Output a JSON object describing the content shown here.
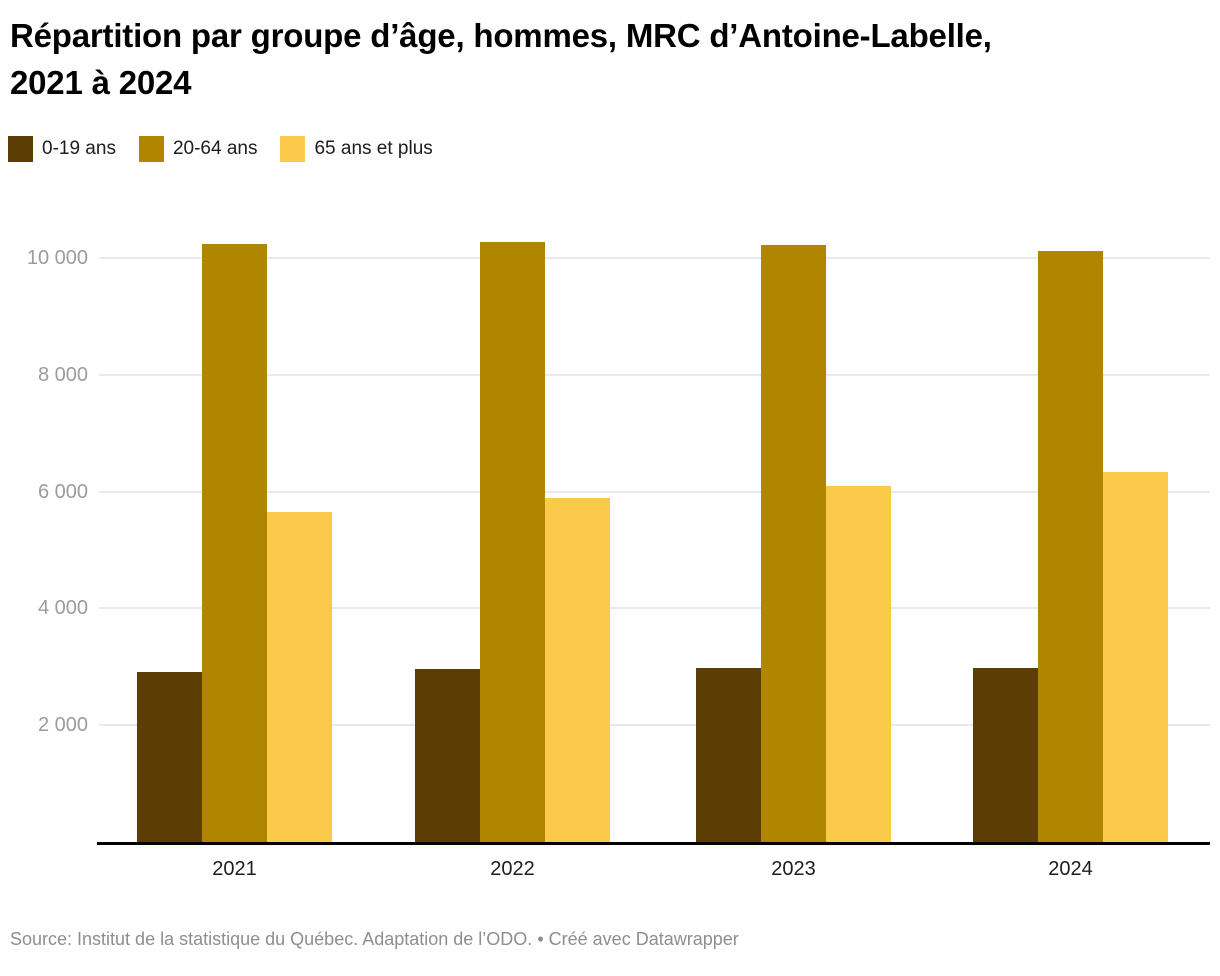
{
  "header": {
    "title": "Répartition par groupe d’âge, hommes, MRC d’Antoine-Labelle, 2021 à 2024"
  },
  "chart_data": {
    "type": "bar",
    "title": "Répartition par groupe d’âge, hommes, MRC d’Antoine-Labelle, 2021 à 2024",
    "categories": [
      "2021",
      "2022",
      "2023",
      "2024"
    ],
    "series": [
      {
        "name": "0-19 ans",
        "color": "#5c3e05",
        "values": [
          2910,
          2960,
          2980,
          2980
        ]
      },
      {
        "name": "20-64 ans",
        "color": "#b08600",
        "values": [
          10240,
          10280,
          10225,
          10115
        ]
      },
      {
        "name": "65 ans et plus",
        "color": "#fcca4b",
        "values": [
          5655,
          5890,
          6100,
          6335
        ]
      }
    ],
    "xlabel": "",
    "ylabel": "",
    "ylim": [
      0,
      10580
    ],
    "yticks": [
      {
        "value": 2000,
        "label": "2 000"
      },
      {
        "value": 4000,
        "label": "4 000"
      },
      {
        "value": 6000,
        "label": "6 000"
      },
      {
        "value": 8000,
        "label": "8 000"
      },
      {
        "value": 10000,
        "label": "10 000"
      }
    ],
    "grid": "horizontal",
    "legend_position": "top",
    "legend": [
      "0-19 ans",
      "20-64 ans",
      "65 ans et plus"
    ]
  },
  "footer": {
    "source": "Source: Institut de la statistique du Québec. Adaptation de l’ODO.",
    "separator": "•",
    "attribution": "Créé avec Datawrapper"
  }
}
